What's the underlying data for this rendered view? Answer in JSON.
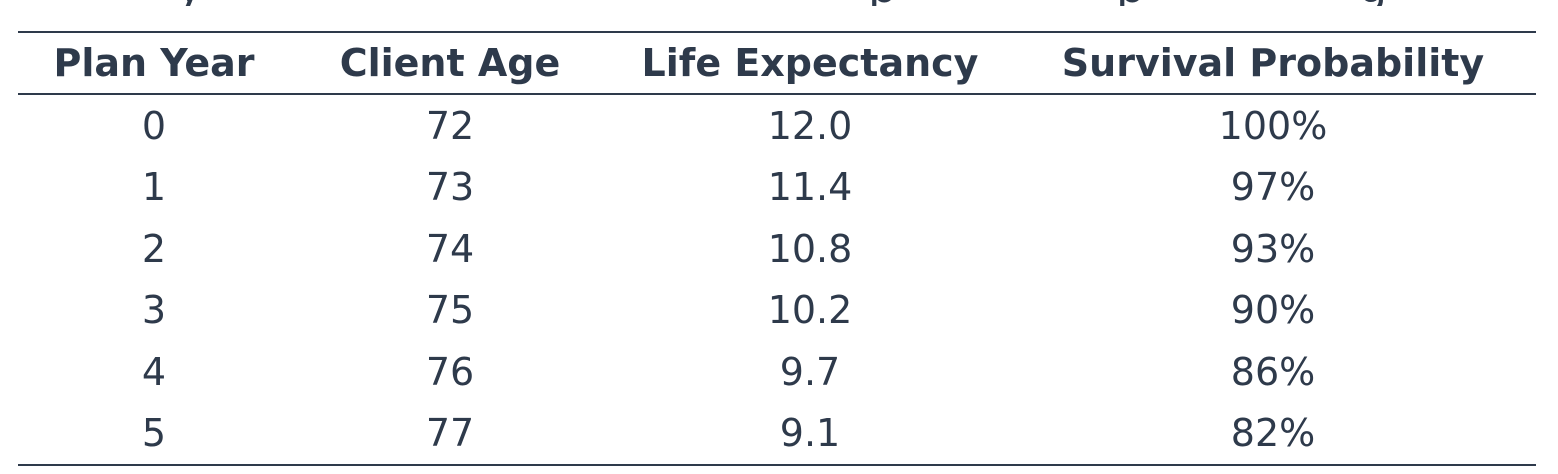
{
  "table": {
    "headers": [
      "Plan Year",
      "Client Age",
      "Life Expectancy",
      "Survival Probability"
    ],
    "rows": [
      [
        "0",
        "72",
        "12.0",
        "100%"
      ],
      [
        "1",
        "73",
        "11.4",
        "97%"
      ],
      [
        "2",
        "74",
        "10.8",
        "93%"
      ],
      [
        "3",
        "75",
        "10.2",
        "90%"
      ],
      [
        "4",
        "76",
        "9.7",
        "86%"
      ],
      [
        "5",
        "77",
        "9.1",
        "82%"
      ]
    ]
  }
}
